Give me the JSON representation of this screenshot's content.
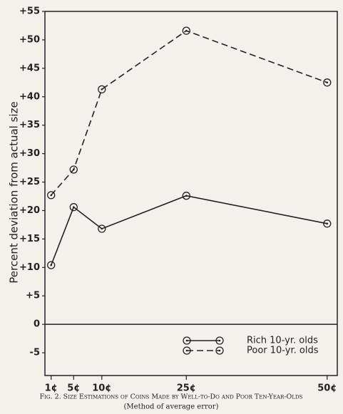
{
  "chart_data": {
    "type": "line",
    "y_label": "Percent deviation from actual size",
    "caption": "Fig. 2. Size Estimations of Coins Made by Well-to-Do and Poor Ten-Year-Olds",
    "subcaption": "(Method of average error)",
    "x": [
      1,
      5,
      10,
      25,
      50
    ],
    "series": [
      {
        "name": "Rich 10-yr. olds",
        "color": "#222222",
        "line_style": "solid",
        "values": [
          10.4,
          20.6,
          16.8,
          22.6,
          17.7
        ]
      },
      {
        "name": "Poor 10-yr. olds",
        "color": "#222222",
        "line_style": "dashed",
        "values": [
          22.7,
          27.2,
          41.3,
          51.6,
          42.5
        ]
      }
    ],
    "xlim": [
      -0.1,
      51.8
    ],
    "xticks": [
      {
        "value": 1,
        "label": "1¢"
      },
      {
        "value": 5,
        "label": "5¢"
      },
      {
        "value": 10,
        "label": "10¢"
      },
      {
        "value": 25,
        "label": "25¢"
      },
      {
        "value": 50,
        "label": "50¢"
      }
    ],
    "ylim": [
      -9,
      55
    ],
    "yticks": [
      {
        "value": 55,
        "label": "+55"
      },
      {
        "value": 50,
        "label": "+50"
      },
      {
        "value": 45,
        "label": "+45"
      },
      {
        "value": 40,
        "label": "+40"
      },
      {
        "value": 35,
        "label": "+35"
      },
      {
        "value": 30,
        "label": "+30"
      },
      {
        "value": 25,
        "label": "+25"
      },
      {
        "value": 20,
        "label": "+20"
      },
      {
        "value": 15,
        "label": "+15"
      },
      {
        "value": 10,
        "label": "+10"
      },
      {
        "value": 5,
        "label": "+5"
      },
      0,
      -5
    ],
    "legend_position": "lower right"
  }
}
